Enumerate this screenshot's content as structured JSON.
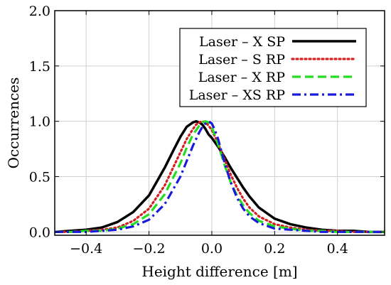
{
  "chart_data": {
    "type": "line",
    "title": "",
    "xlabel": "Height difference [m]",
    "ylabel": "Occurrences",
    "xlim": [
      -0.5,
      0.55
    ],
    "ylim": [
      -0.03,
      2.0
    ],
    "xticks": [
      -0.4,
      -0.2,
      0.0,
      0.2,
      0.4
    ],
    "xtick_labels": [
      "−0.4",
      "−0.2",
      "0.0",
      "0.2",
      "0.4"
    ],
    "yticks": [
      0.0,
      0.5,
      1.0,
      1.5,
      2.0
    ],
    "ytick_labels": [
      "0.0",
      "0.5",
      "1.0",
      "1.5",
      "2.0"
    ],
    "grid": true,
    "legend_position": "top-right",
    "series": [
      {
        "name": "Laser – X SP",
        "color": "#000000",
        "dash": "solid",
        "x": [
          -0.5,
          -0.45,
          -0.4,
          -0.35,
          -0.3,
          -0.25,
          -0.2,
          -0.15,
          -0.12,
          -0.1,
          -0.08,
          -0.06,
          -0.05,
          -0.04,
          -0.03,
          -0.02,
          -0.01,
          0.0,
          0.02,
          0.04,
          0.06,
          0.08,
          0.1,
          0.12,
          0.15,
          0.2,
          0.25,
          0.3,
          0.35,
          0.4,
          0.45,
          0.5,
          0.55
        ],
        "y": [
          0.0,
          0.01,
          0.02,
          0.04,
          0.09,
          0.18,
          0.33,
          0.58,
          0.75,
          0.86,
          0.95,
          0.99,
          1.0,
          0.99,
          0.97,
          0.93,
          0.88,
          0.85,
          0.77,
          0.68,
          0.58,
          0.49,
          0.4,
          0.32,
          0.22,
          0.12,
          0.07,
          0.04,
          0.02,
          0.01,
          0.01,
          0.0,
          0.0
        ]
      },
      {
        "name": "Laser – S RP",
        "color": "#d42020",
        "dash": "dotted",
        "x": [
          -0.5,
          -0.45,
          -0.4,
          -0.35,
          -0.3,
          -0.25,
          -0.2,
          -0.15,
          -0.1,
          -0.08,
          -0.06,
          -0.05,
          -0.04,
          -0.03,
          -0.02,
          -0.01,
          0.0,
          0.02,
          0.04,
          0.06,
          0.08,
          0.1,
          0.12,
          0.15,
          0.2,
          0.25,
          0.3,
          0.35,
          0.4,
          0.45,
          0.5,
          0.55
        ],
        "y": [
          0.0,
          0.0,
          0.01,
          0.02,
          0.04,
          0.1,
          0.21,
          0.42,
          0.72,
          0.84,
          0.93,
          0.97,
          0.99,
          1.0,
          0.99,
          0.96,
          0.92,
          0.8,
          0.66,
          0.52,
          0.4,
          0.3,
          0.22,
          0.14,
          0.07,
          0.04,
          0.02,
          0.01,
          0.01,
          0.0,
          0.0,
          0.0
        ]
      },
      {
        "name": "Laser – X RP",
        "color": "#22dd22",
        "dash": "dashed",
        "x": [
          -0.5,
          -0.45,
          -0.4,
          -0.35,
          -0.3,
          -0.25,
          -0.2,
          -0.15,
          -0.1,
          -0.08,
          -0.06,
          -0.04,
          -0.03,
          -0.02,
          -0.01,
          0.0,
          0.02,
          0.04,
          0.06,
          0.08,
          0.1,
          0.12,
          0.15,
          0.2,
          0.25,
          0.3,
          0.35,
          0.4,
          0.45,
          0.5,
          0.55
        ],
        "y": [
          0.0,
          0.0,
          0.01,
          0.01,
          0.03,
          0.07,
          0.16,
          0.34,
          0.62,
          0.76,
          0.88,
          0.96,
          0.99,
          1.0,
          0.99,
          0.95,
          0.79,
          0.61,
          0.45,
          0.33,
          0.24,
          0.17,
          0.1,
          0.05,
          0.03,
          0.01,
          0.01,
          0.0,
          0.0,
          0.0,
          0.0
        ]
      },
      {
        "name": "Laser – XS RP",
        "color": "#1a1adc",
        "dash": "dashdot",
        "x": [
          -0.5,
          -0.45,
          -0.4,
          -0.35,
          -0.3,
          -0.25,
          -0.2,
          -0.15,
          -0.1,
          -0.08,
          -0.06,
          -0.04,
          -0.03,
          -0.02,
          -0.01,
          0.0,
          0.01,
          0.02,
          0.04,
          0.06,
          0.08,
          0.1,
          0.12,
          0.15,
          0.2,
          0.25,
          0.3,
          0.35,
          0.4,
          0.45,
          0.5,
          0.55
        ],
        "y": [
          0.0,
          0.0,
          0.0,
          0.01,
          0.02,
          0.05,
          0.11,
          0.25,
          0.5,
          0.64,
          0.78,
          0.9,
          0.95,
          0.98,
          1.0,
          0.98,
          0.92,
          0.84,
          0.63,
          0.45,
          0.31,
          0.21,
          0.14,
          0.08,
          0.03,
          0.02,
          0.01,
          0.0,
          0.0,
          0.0,
          0.0,
          0.0
        ]
      }
    ]
  }
}
